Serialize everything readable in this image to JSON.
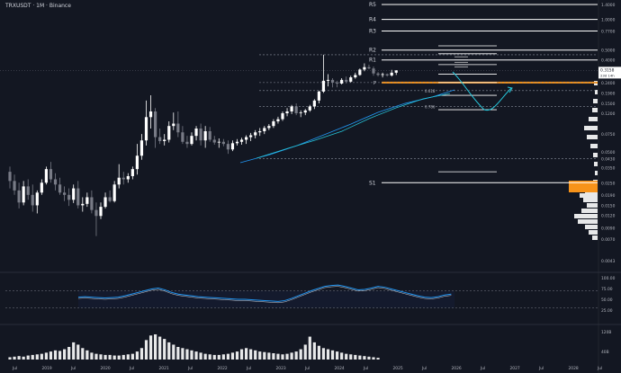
{
  "header": {
    "symbol": "TRXUSDT · 1M · Binance"
  },
  "chart_data": {
    "type": "candlestick",
    "scale": "log",
    "panes": [
      "price",
      "rsi",
      "volume"
    ],
    "x_ticks": [
      "Jul",
      "2019",
      "Jul",
      "2020",
      "Jul",
      "2021",
      "Jul",
      "2022",
      "Jul",
      "2023",
      "Jul",
      "2024",
      "Jul",
      "2025",
      "Jul",
      "2026",
      "Jul",
      "2027",
      "Jul",
      "2028",
      "Jul"
    ],
    "price_axis": [
      "1.4000",
      "1.0000",
      "0.7700",
      "0.5000",
      "0.4000",
      "0.3000",
      "0.2400",
      "0.1900",
      "0.1500",
      "0.1200",
      "0.0750",
      "0.0500",
      "0.0430",
      "0.0350",
      "0.0250",
      "0.0190",
      "0.0150",
      "0.0120",
      "0.0090",
      "0.0070",
      "0.0043"
    ],
    "last_price": "0.3158",
    "countdown": "23d 14h",
    "levels": [
      {
        "label": "R5",
        "value": 1.4
      },
      {
        "label": "R4",
        "value": 1.0
      },
      {
        "label": "R3",
        "value": 0.77
      },
      {
        "label": "R2",
        "value": 0.5
      },
      {
        "label": "R1",
        "value": 0.4
      },
      {
        "label": "P",
        "value": 0.24
      },
      {
        "label": "S1",
        "value": 0.025
      }
    ],
    "fib_labels": [
      {
        "label": "0.618",
        "value": 0.2
      },
      {
        "label": "0.786",
        "value": 0.14
      }
    ],
    "rsi_axis": [
      "100.00",
      "75.00",
      "50.00",
      "25.00"
    ],
    "volume_axis": [
      "120B",
      "40B"
    ],
    "candles": [
      {
        "o": 0.032,
        "h": 0.036,
        "l": 0.022,
        "c": 0.026
      },
      {
        "o": 0.026,
        "h": 0.03,
        "l": 0.019,
        "c": 0.021
      },
      {
        "o": 0.021,
        "h": 0.025,
        "l": 0.014,
        "c": 0.016
      },
      {
        "o": 0.016,
        "h": 0.026,
        "l": 0.015,
        "c": 0.023
      },
      {
        "o": 0.023,
        "h": 0.027,
        "l": 0.017,
        "c": 0.019
      },
      {
        "o": 0.019,
        "h": 0.024,
        "l": 0.013,
        "c": 0.015
      },
      {
        "o": 0.015,
        "h": 0.021,
        "l": 0.0125,
        "c": 0.02
      },
      {
        "o": 0.02,
        "h": 0.027,
        "l": 0.019,
        "c": 0.025
      },
      {
        "o": 0.025,
        "h": 0.036,
        "l": 0.024,
        "c": 0.034
      },
      {
        "o": 0.034,
        "h": 0.04,
        "l": 0.025,
        "c": 0.027
      },
      {
        "o": 0.027,
        "h": 0.031,
        "l": 0.021,
        "c": 0.024
      },
      {
        "o": 0.024,
        "h": 0.028,
        "l": 0.019,
        "c": 0.02
      },
      {
        "o": 0.02,
        "h": 0.023,
        "l": 0.0165,
        "c": 0.019
      },
      {
        "o": 0.019,
        "h": 0.022,
        "l": 0.0148,
        "c": 0.017
      },
      {
        "o": 0.017,
        "h": 0.024,
        "l": 0.0158,
        "c": 0.022
      },
      {
        "o": 0.022,
        "h": 0.026,
        "l": 0.014,
        "c": 0.015
      },
      {
        "o": 0.015,
        "h": 0.018,
        "l": 0.013,
        "c": 0.0155
      },
      {
        "o": 0.0155,
        "h": 0.02,
        "l": 0.0145,
        "c": 0.018
      },
      {
        "o": 0.018,
        "h": 0.021,
        "l": 0.0125,
        "c": 0.0135
      },
      {
        "o": 0.0135,
        "h": 0.016,
        "l": 0.0075,
        "c": 0.0118
      },
      {
        "o": 0.0118,
        "h": 0.016,
        "l": 0.011,
        "c": 0.0145
      },
      {
        "o": 0.0145,
        "h": 0.02,
        "l": 0.014,
        "c": 0.018
      },
      {
        "o": 0.018,
        "h": 0.021,
        "l": 0.016,
        "c": 0.0165
      },
      {
        "o": 0.0165,
        "h": 0.026,
        "l": 0.016,
        "c": 0.024
      },
      {
        "o": 0.024,
        "h": 0.038,
        "l": 0.022,
        "c": 0.028
      },
      {
        "o": 0.028,
        "h": 0.032,
        "l": 0.024,
        "c": 0.027
      },
      {
        "o": 0.027,
        "h": 0.031,
        "l": 0.025,
        "c": 0.029
      },
      {
        "o": 0.029,
        "h": 0.036,
        "l": 0.027,
        "c": 0.034
      },
      {
        "o": 0.034,
        "h": 0.06,
        "l": 0.03,
        "c": 0.046
      },
      {
        "o": 0.046,
        "h": 0.075,
        "l": 0.042,
        "c": 0.065
      },
      {
        "o": 0.065,
        "h": 0.16,
        "l": 0.058,
        "c": 0.11
      },
      {
        "o": 0.11,
        "h": 0.18,
        "l": 0.085,
        "c": 0.125
      },
      {
        "o": 0.125,
        "h": 0.135,
        "l": 0.055,
        "c": 0.07
      },
      {
        "o": 0.07,
        "h": 0.085,
        "l": 0.06,
        "c": 0.064
      },
      {
        "o": 0.064,
        "h": 0.075,
        "l": 0.058,
        "c": 0.066
      },
      {
        "o": 0.066,
        "h": 0.1,
        "l": 0.062,
        "c": 0.09
      },
      {
        "o": 0.09,
        "h": 0.122,
        "l": 0.082,
        "c": 0.095
      },
      {
        "o": 0.095,
        "h": 0.125,
        "l": 0.07,
        "c": 0.078
      },
      {
        "o": 0.078,
        "h": 0.09,
        "l": 0.06,
        "c": 0.063
      },
      {
        "o": 0.063,
        "h": 0.072,
        "l": 0.055,
        "c": 0.06
      },
      {
        "o": 0.06,
        "h": 0.078,
        "l": 0.058,
        "c": 0.072
      },
      {
        "o": 0.072,
        "h": 0.09,
        "l": 0.065,
        "c": 0.085
      },
      {
        "o": 0.085,
        "h": 0.095,
        "l": 0.058,
        "c": 0.065
      },
      {
        "o": 0.065,
        "h": 0.09,
        "l": 0.055,
        "c": 0.08
      },
      {
        "o": 0.08,
        "h": 0.088,
        "l": 0.063,
        "c": 0.066
      },
      {
        "o": 0.066,
        "h": 0.072,
        "l": 0.059,
        "c": 0.062
      },
      {
        "o": 0.062,
        "h": 0.068,
        "l": 0.055,
        "c": 0.063
      },
      {
        "o": 0.063,
        "h": 0.067,
        "l": 0.057,
        "c": 0.06
      },
      {
        "o": 0.06,
        "h": 0.065,
        "l": 0.048,
        "c": 0.053
      },
      {
        "o": 0.053,
        "h": 0.065,
        "l": 0.051,
        "c": 0.061
      },
      {
        "o": 0.061,
        "h": 0.067,
        "l": 0.058,
        "c": 0.063
      },
      {
        "o": 0.063,
        "h": 0.069,
        "l": 0.059,
        "c": 0.066
      },
      {
        "o": 0.066,
        "h": 0.073,
        "l": 0.06,
        "c": 0.07
      },
      {
        "o": 0.07,
        "h": 0.077,
        "l": 0.064,
        "c": 0.073
      },
      {
        "o": 0.073,
        "h": 0.082,
        "l": 0.068,
        "c": 0.078
      },
      {
        "o": 0.078,
        "h": 0.086,
        "l": 0.072,
        "c": 0.08
      },
      {
        "o": 0.08,
        "h": 0.09,
        "l": 0.075,
        "c": 0.086
      },
      {
        "o": 0.086,
        "h": 0.094,
        "l": 0.082,
        "c": 0.09
      },
      {
        "o": 0.09,
        "h": 0.105,
        "l": 0.086,
        "c": 0.1
      },
      {
        "o": 0.1,
        "h": 0.111,
        "l": 0.095,
        "c": 0.105
      },
      {
        "o": 0.105,
        "h": 0.125,
        "l": 0.101,
        "c": 0.12
      },
      {
        "o": 0.12,
        "h": 0.135,
        "l": 0.112,
        "c": 0.125
      },
      {
        "o": 0.125,
        "h": 0.145,
        "l": 0.118,
        "c": 0.14
      },
      {
        "o": 0.14,
        "h": 0.15,
        "l": 0.115,
        "c": 0.12
      },
      {
        "o": 0.12,
        "h": 0.128,
        "l": 0.11,
        "c": 0.122
      },
      {
        "o": 0.122,
        "h": 0.132,
        "l": 0.115,
        "c": 0.128
      },
      {
        "o": 0.128,
        "h": 0.145,
        "l": 0.124,
        "c": 0.14
      },
      {
        "o": 0.14,
        "h": 0.165,
        "l": 0.132,
        "c": 0.16
      },
      {
        "o": 0.16,
        "h": 0.2,
        "l": 0.15,
        "c": 0.196
      },
      {
        "o": 0.196,
        "h": 0.45,
        "l": 0.19,
        "c": 0.25
      },
      {
        "o": 0.25,
        "h": 0.29,
        "l": 0.22,
        "c": 0.255
      },
      {
        "o": 0.255,
        "h": 0.265,
        "l": 0.215,
        "c": 0.24
      },
      {
        "o": 0.24,
        "h": 0.25,
        "l": 0.216,
        "c": 0.235
      },
      {
        "o": 0.235,
        "h": 0.265,
        "l": 0.23,
        "c": 0.255
      },
      {
        "o": 0.255,
        "h": 0.275,
        "l": 0.236,
        "c": 0.245
      },
      {
        "o": 0.245,
        "h": 0.28,
        "l": 0.24,
        "c": 0.27
      },
      {
        "o": 0.27,
        "h": 0.3,
        "l": 0.262,
        "c": 0.285
      },
      {
        "o": 0.285,
        "h": 0.33,
        "l": 0.28,
        "c": 0.322
      },
      {
        "o": 0.322,
        "h": 0.37,
        "l": 0.31,
        "c": 0.34
      },
      {
        "o": 0.34,
        "h": 0.36,
        "l": 0.325,
        "c": 0.33
      },
      {
        "o": 0.33,
        "h": 0.345,
        "l": 0.28,
        "c": 0.295
      },
      {
        "o": 0.295,
        "h": 0.305,
        "l": 0.275,
        "c": 0.285
      },
      {
        "o": 0.285,
        "h": 0.3,
        "l": 0.27,
        "c": 0.29
      },
      {
        "o": 0.29,
        "h": 0.295,
        "l": 0.275,
        "c": 0.282
      },
      {
        "o": 0.282,
        "h": 0.32,
        "l": 0.275,
        "c": 0.3
      },
      {
        "o": 0.3,
        "h": 0.318,
        "l": 0.285,
        "c": 0.3158
      }
    ],
    "rsi": [
      55,
      56,
      55,
      54,
      53,
      54,
      55,
      58,
      62,
      66,
      70,
      74,
      76,
      72,
      66,
      62,
      60,
      58,
      56,
      55,
      54,
      53,
      52,
      51,
      50,
      50,
      49,
      48,
      47,
      46,
      45,
      47,
      52,
      58,
      64,
      70,
      75,
      80,
      82,
      83,
      80,
      76,
      72,
      73,
      76,
      80,
      78,
      74,
      70,
      66,
      62,
      58,
      55,
      54,
      56,
      60,
      62
    ],
    "volume": [
      4,
      5,
      6,
      5,
      7,
      8,
      9,
      10,
      12,
      14,
      16,
      15,
      18,
      22,
      30,
      26,
      20,
      16,
      12,
      10,
      9,
      8,
      8,
      7,
      7,
      8,
      9,
      10,
      14,
      20,
      34,
      42,
      44,
      40,
      36,
      30,
      26,
      22,
      20,
      18,
      16,
      14,
      12,
      10,
      9,
      8,
      8,
      9,
      10,
      12,
      14,
      18,
      20,
      18,
      16,
      14,
      13,
      12,
      11,
      10,
      9,
      10,
      12,
      14,
      18,
      26,
      40,
      30,
      24,
      20,
      18,
      16,
      14,
      12,
      10,
      9,
      8,
      7,
      6,
      5,
      4,
      3
    ]
  }
}
